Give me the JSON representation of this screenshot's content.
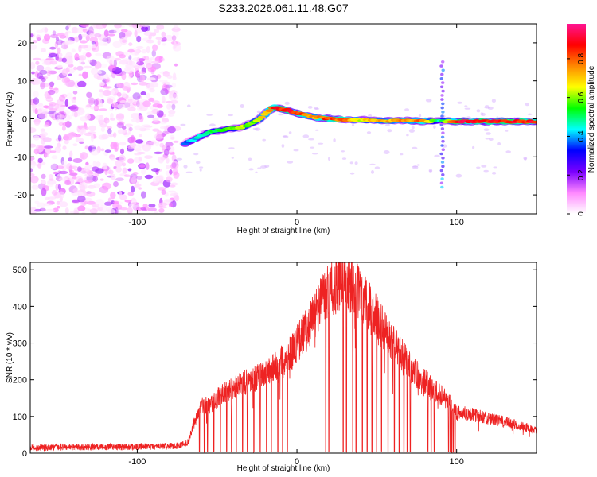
{
  "title": "S233.2026.061.11.48.G07",
  "chart_data": [
    {
      "type": "heatmap",
      "xlabel": "Height of straight line (km)",
      "ylabel": "Frequency (Hz)",
      "xlim": [
        -167,
        150
      ],
      "ylim": [
        -25,
        25
      ],
      "xticks": [
        -100,
        0,
        100
      ],
      "yticks": [
        -20,
        -10,
        0,
        10,
        20
      ],
      "grid": false,
      "colorbar": {
        "label": "Normalized spectral amplitude",
        "range": [
          0,
          0.98
        ],
        "ticks": [
          0,
          0.2,
          0.4,
          0.6,
          0.8
        ],
        "colors": [
          "#ffffff",
          "#ff88ff",
          "#7a00ff",
          "#0000ff",
          "#00ffff",
          "#00ff00",
          "#ffff00",
          "#ff8800",
          "#ff0000",
          "#ff1493"
        ]
      },
      "ridge": {
        "name": "Doppler ridge",
        "x": [
          -70,
          -65,
          -60,
          -55,
          -45,
          -35,
          -25,
          -15,
          -5,
          0,
          10,
          20,
          30,
          40,
          50,
          60,
          70,
          80,
          90,
          100,
          110,
          120,
          130,
          140,
          150
        ],
        "y": [
          -6.5,
          -5.5,
          -4.5,
          -3.5,
          -2.8,
          -2.3,
          -0.5,
          3.0,
          2.2,
          1.5,
          0.5,
          0.0,
          -0.2,
          -0.3,
          -0.4,
          -0.5,
          -0.5,
          -0.6,
          -0.6,
          -0.7,
          -0.7,
          -0.7,
          -0.7,
          -0.7,
          -0.7
        ],
        "amplitude": [
          0.4,
          0.45,
          0.5,
          0.55,
          0.6,
          0.65,
          0.65,
          0.9,
          0.95,
          0.92,
          0.8,
          0.9,
          0.85,
          0.7,
          0.75,
          0.8,
          0.8,
          0.85,
          0.5,
          0.95,
          0.95,
          0.95,
          0.95,
          0.95,
          0.95
        ]
      },
      "noise_region": {
        "x": [
          -167,
          -75
        ],
        "y": [
          -25,
          25
        ],
        "amplitude": [
          0.02,
          0.2
        ]
      },
      "spike": {
        "x": 91,
        "y": [
          -18,
          16
        ]
      }
    },
    {
      "type": "line",
      "xlabel": "Height of straight line (km)",
      "ylabel": "SNR (10 * v/v)",
      "xlim": [
        -167,
        150
      ],
      "ylim": [
        0,
        520
      ],
      "xticks": [
        -100,
        0,
        100
      ],
      "yticks": [
        0,
        100,
        200,
        300,
        400,
        500
      ],
      "grid": false,
      "series": [
        {
          "name": "SNR",
          "color": "#ee2222",
          "x": [
            -167,
            -150,
            -130,
            -110,
            -90,
            -75,
            -68,
            -65,
            -60,
            -55,
            -50,
            -45,
            -40,
            -35,
            -30,
            -25,
            -20,
            -15,
            -10,
            -5,
            0,
            5,
            10,
            15,
            20,
            25,
            30,
            35,
            40,
            45,
            50,
            55,
            60,
            65,
            70,
            75,
            80,
            85,
            90,
            95,
            100,
            105,
            110,
            115,
            120,
            125,
            130,
            135,
            140,
            145,
            150
          ],
          "y": [
            15,
            16,
            17,
            17,
            18,
            20,
            30,
            75,
            130,
            130,
            150,
            165,
            180,
            190,
            195,
            205,
            215,
            235,
            250,
            270,
            300,
            330,
            370,
            410,
            440,
            460,
            465,
            455,
            430,
            400,
            365,
            330,
            300,
            270,
            240,
            215,
            195,
            175,
            160,
            140,
            110,
            110,
            105,
            100,
            95,
            90,
            85,
            80,
            75,
            68,
            60
          ],
          "dropouts_x": [
            -61,
            -58,
            -56,
            -52,
            -48,
            -44,
            -41,
            -38,
            -34,
            -31,
            -27,
            -23,
            -19,
            -16,
            -12,
            -9,
            -6,
            18,
            20,
            29,
            31,
            35,
            37,
            41,
            44,
            47,
            50,
            53,
            57,
            61,
            64,
            67,
            69,
            71,
            82,
            84,
            86,
            95,
            96,
            97,
            98,
            99
          ]
        }
      ]
    }
  ]
}
